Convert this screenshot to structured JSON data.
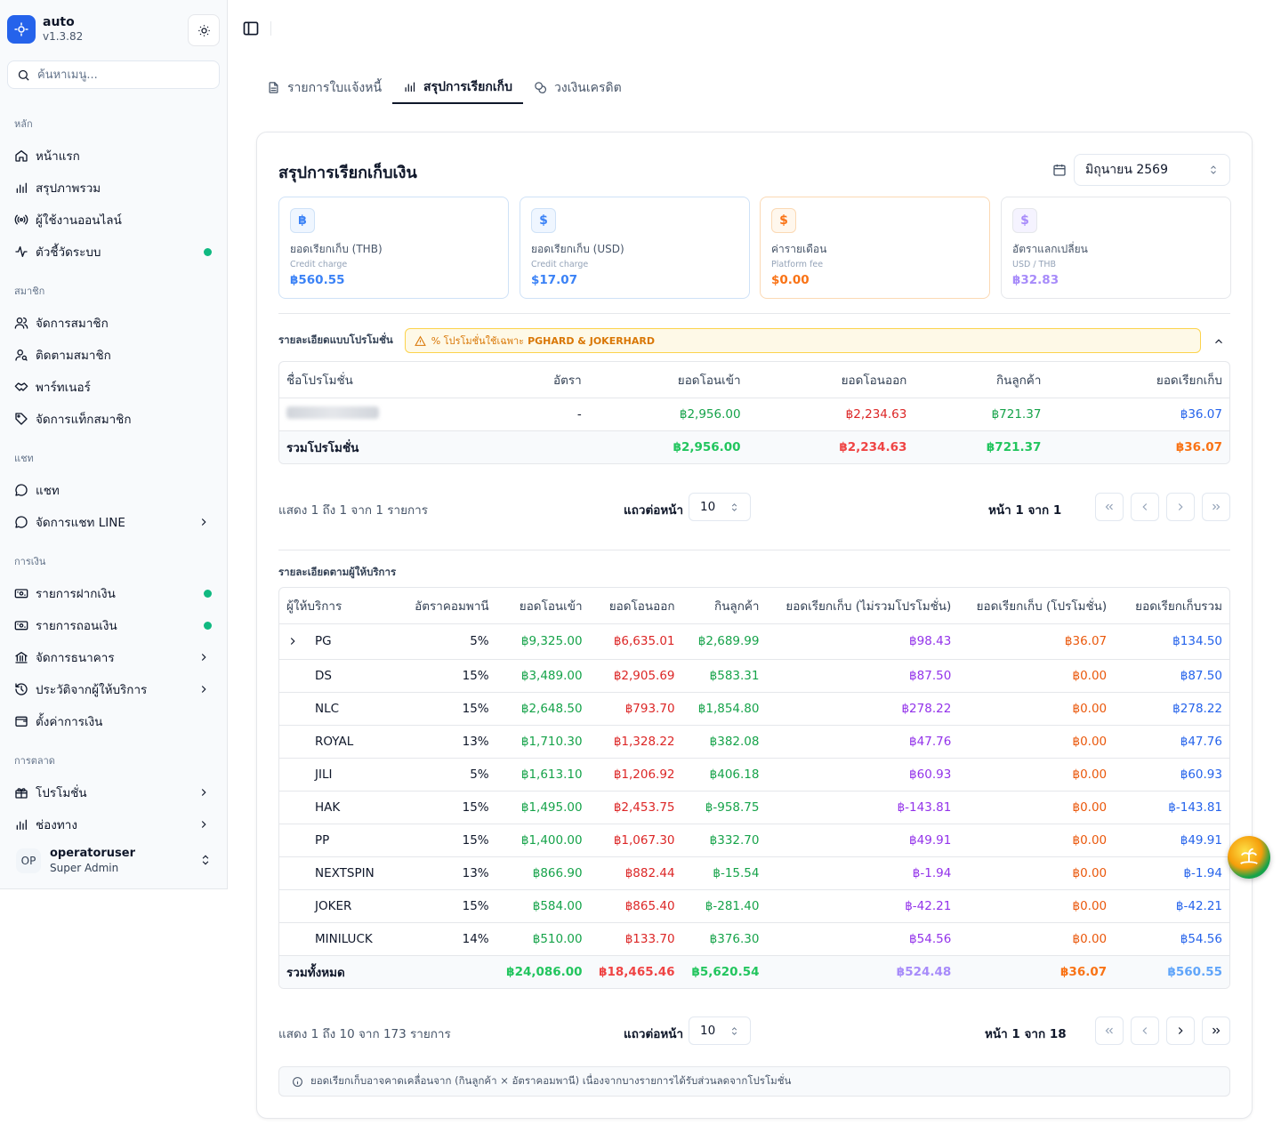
{
  "app": {
    "name": "auto",
    "version": "v1.3.82"
  },
  "sidebar": {
    "search_placeholder": "ค้นหาเมนู...",
    "groups": [
      {
        "label": "หลัก",
        "items": [
          {
            "label": "หน้าแรก",
            "icon": "home-icon"
          },
          {
            "label": "สรุปภาพรวม",
            "icon": "bar-chart-icon"
          },
          {
            "label": "ผู้ใช้งานออนไลน์",
            "icon": "radio-icon"
          },
          {
            "label": "ตัวชี้วัดระบบ",
            "icon": "activity-icon",
            "status_dot": true
          }
        ]
      },
      {
        "label": "สมาชิก",
        "items": [
          {
            "label": "จัดการสมาชิก",
            "icon": "users-icon"
          },
          {
            "label": "ติดตามสมาชิก",
            "icon": "user-search-icon"
          },
          {
            "label": "พาร์ทเนอร์",
            "icon": "handshake-icon"
          },
          {
            "label": "จัดการแท็กสมาชิก",
            "icon": "tag-icon"
          }
        ]
      },
      {
        "label": "แชท",
        "items": [
          {
            "label": "แชท",
            "icon": "message-icon"
          },
          {
            "label": "จัดการแชท LINE",
            "icon": "message-icon",
            "chevron": true
          }
        ]
      },
      {
        "label": "การเงิน",
        "items": [
          {
            "label": "รายการฝากเงิน",
            "icon": "deposit-icon",
            "status_dot": true
          },
          {
            "label": "รายการถอนเงิน",
            "icon": "withdraw-icon",
            "status_dot": true
          },
          {
            "label": "จัดการธนาคาร",
            "icon": "bank-icon",
            "chevron": true
          },
          {
            "label": "ประวัติจากผู้ให้บริการ",
            "icon": "history-icon",
            "chevron": true
          },
          {
            "label": "ตั้งค่าการเงิน",
            "icon": "wallet-icon"
          }
        ]
      },
      {
        "label": "การตลาด",
        "items": [
          {
            "label": "โปรโมชั่น",
            "icon": "gift-icon",
            "chevron": true
          },
          {
            "label": "ช่องทาง",
            "icon": "bar-chart-icon",
            "chevron": true
          }
        ]
      }
    ],
    "user": {
      "initials": "OP",
      "name": "operatoruser",
      "role": "Super Admin"
    }
  },
  "tabs": [
    {
      "label": "รายการใบแจ้งหนี้",
      "icon": "file-icon",
      "active": false
    },
    {
      "label": "สรุปการเรียกเก็บ",
      "icon": "bar-chart-icon",
      "active": true
    },
    {
      "label": "วงเงินเครดิต",
      "icon": "coins-icon",
      "active": false
    }
  ],
  "summary": {
    "title": "สรุปการเรียกเก็บเงิน",
    "month": "มิถุนายน 2569",
    "cards": [
      {
        "label": "ยอดเรียกเก็บ (THB)",
        "sub": "Credit charge",
        "value": "฿560.55",
        "accent": "#3b82f6",
        "bg": "#eff6ff",
        "border": "#cfe2f7",
        "icon": "receipt-icon",
        "glyph": "฿"
      },
      {
        "label": "ยอดเรียกเก็บ (USD)",
        "sub": "Credit charge",
        "value": "$17.07",
        "accent": "#3b82f6",
        "bg": "#eff6ff",
        "border": "#cfe2f7",
        "icon": "receipt-icon",
        "glyph": "$"
      },
      {
        "label": "ค่ารายเดือน",
        "sub": "Platform fee",
        "value": "$0.00",
        "accent": "#f97316",
        "bg": "#fff7ed",
        "border": "#fbd9b4",
        "icon": "receipt-icon",
        "glyph": "$"
      },
      {
        "label": "อัตราแลกเปลี่ยน",
        "sub": "USD / THB",
        "value": "฿32.83",
        "accent": "#a78bfa",
        "bg": "#f5f3ff",
        "border": "#e5e7eb",
        "icon": "dollar-icon",
        "glyph": "$"
      }
    ]
  },
  "promo": {
    "section_label": "รายละเอียดแบบโปรโมชั่น",
    "warning_text": "% โปรโมชั่นใช้เฉพาะ",
    "warning_bold": "PGHARD & JOKERHARD",
    "headers": [
      "ชื่อโปรโมชั่น",
      "อัตรา",
      "ยอดโอนเข้า",
      "ยอดโอนออก",
      "กินลูกค้า",
      "ยอดเรียกเก็บ"
    ],
    "rows": [
      {
        "name": "",
        "rate": "-",
        "in": "฿2,956.00",
        "out": "฿2,234.63",
        "win": "฿721.37",
        "charge": "฿36.07"
      }
    ],
    "total": {
      "label": "รวมโปรโมชั่น",
      "in": "฿2,956.00",
      "out": "฿2,234.63",
      "win": "฿721.37",
      "charge": "฿36.07"
    },
    "pager": {
      "info": "แสดง 1 ถึง 1 จาก 1 รายการ",
      "rows_label": "แถวต่อหน้า",
      "rows_value": "10",
      "page_info": "หน้า 1 จาก 1"
    }
  },
  "providers": {
    "section_label": "รายละเอียดตามผู้ให้บริการ",
    "headers": [
      "ผู้ให้บริการ",
      "อัตราคอมพานี",
      "ยอดโอนเข้า",
      "ยอดโอนออก",
      "กินลูกค้า",
      "ยอดเรียกเก็บ (ไม่รวมโปรโมชั่น)",
      "ยอดเรียกเก็บ (โปรโมชั่น)",
      "ยอดเรียกเก็บรวม"
    ],
    "rows": [
      {
        "name": "PG",
        "rate": "5%",
        "in": "฿9,325.00",
        "out": "฿6,635.01",
        "win": "฿2,689.99",
        "charge": "฿98.43",
        "promo": "฿36.07",
        "total": "฿134.50",
        "expand": true
      },
      {
        "name": "DS",
        "rate": "15%",
        "in": "฿3,489.00",
        "out": "฿2,905.69",
        "win": "฿583.31",
        "charge": "฿87.50",
        "promo": "฿0.00",
        "total": "฿87.50"
      },
      {
        "name": "NLC",
        "rate": "15%",
        "in": "฿2,648.50",
        "out": "฿793.70",
        "win": "฿1,854.80",
        "charge": "฿278.22",
        "promo": "฿0.00",
        "total": "฿278.22"
      },
      {
        "name": "ROYAL",
        "rate": "13%",
        "in": "฿1,710.30",
        "out": "฿1,328.22",
        "win": "฿382.08",
        "charge": "฿47.76",
        "promo": "฿0.00",
        "total": "฿47.76"
      },
      {
        "name": "JILI",
        "rate": "5%",
        "in": "฿1,613.10",
        "out": "฿1,206.92",
        "win": "฿406.18",
        "charge": "฿60.93",
        "promo": "฿0.00",
        "total": "฿60.93"
      },
      {
        "name": "HAK",
        "rate": "15%",
        "in": "฿1,495.00",
        "out": "฿2,453.75",
        "win": "฿-958.75",
        "charge": "฿-143.81",
        "promo": "฿0.00",
        "total": "฿-143.81"
      },
      {
        "name": "PP",
        "rate": "15%",
        "in": "฿1,400.00",
        "out": "฿1,067.30",
        "win": "฿332.70",
        "charge": "฿49.91",
        "promo": "฿0.00",
        "total": "฿49.91"
      },
      {
        "name": "NEXTSPIN",
        "rate": "13%",
        "in": "฿866.90",
        "out": "฿882.44",
        "win": "฿-15.54",
        "charge": "฿-1.94",
        "promo": "฿0.00",
        "total": "฿-1.94"
      },
      {
        "name": "JOKER",
        "rate": "15%",
        "in": "฿584.00",
        "out": "฿865.40",
        "win": "฿-281.40",
        "charge": "฿-42.21",
        "promo": "฿0.00",
        "total": "฿-42.21"
      },
      {
        "name": "MINILUCK",
        "rate": "14%",
        "in": "฿510.00",
        "out": "฿133.70",
        "win": "฿376.30",
        "charge": "฿54.56",
        "promo": "฿0.00",
        "total": "฿54.56"
      }
    ],
    "total": {
      "label": "รวมทั้งหมด",
      "in": "฿24,086.00",
      "out": "฿18,465.46",
      "win": "฿5,620.54",
      "charge": "฿524.48",
      "promo": "฿36.07",
      "total": "฿560.55"
    },
    "pager": {
      "info": "แสดง 1 ถึง 10 จาก 173 รายการ",
      "rows_label": "แถวต่อหน้า",
      "rows_value": "10",
      "page_info": "หน้า 1 จาก 18"
    }
  },
  "note": "ยอดเรียกเก็บอาจคาดเคลื่อนจาก (กินลูกค้า × อัตราคอมพานี) เนื่องจากบางรายการได้รับส่วนลดจากโปรโมชั่น"
}
